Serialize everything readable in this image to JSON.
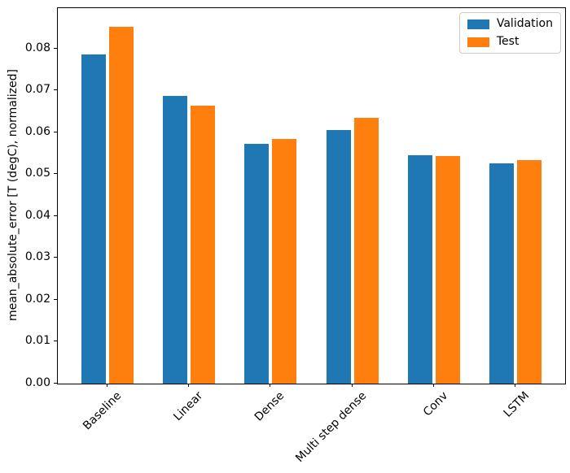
{
  "chart_data": {
    "type": "bar",
    "categories": [
      "Baseline",
      "Linear",
      "Dense",
      "Multi step dense",
      "Conv",
      "LSTM"
    ],
    "series": [
      {
        "name": "Validation",
        "color": "#1f77b4",
        "values": [
          0.0785,
          0.0687,
          0.0572,
          0.0606,
          0.0545,
          0.0525
        ]
      },
      {
        "name": "Test",
        "color": "#ff7f0e",
        "values": [
          0.0852,
          0.0663,
          0.0583,
          0.0634,
          0.0543,
          0.0533
        ]
      }
    ],
    "title": "",
    "xlabel": "",
    "ylabel": "mean_absolute_error [T (degC), normalized]",
    "ylim": [
      0,
      0.0896
    ],
    "yticks": [
      0.0,
      0.01,
      0.02,
      0.03,
      0.04,
      0.05,
      0.06,
      0.07,
      0.08
    ],
    "ytick_labels": [
      "0.00",
      "0.01",
      "0.02",
      "0.03",
      "0.04",
      "0.05",
      "0.06",
      "0.07",
      "0.08"
    ],
    "grid": false,
    "legend_position": "upper right"
  },
  "colors": {
    "background": "#ffffff",
    "axis": "#000000",
    "legend_border": "#cccccc",
    "validation_bar": "#1f77b4",
    "test_bar": "#ff7f0e"
  }
}
